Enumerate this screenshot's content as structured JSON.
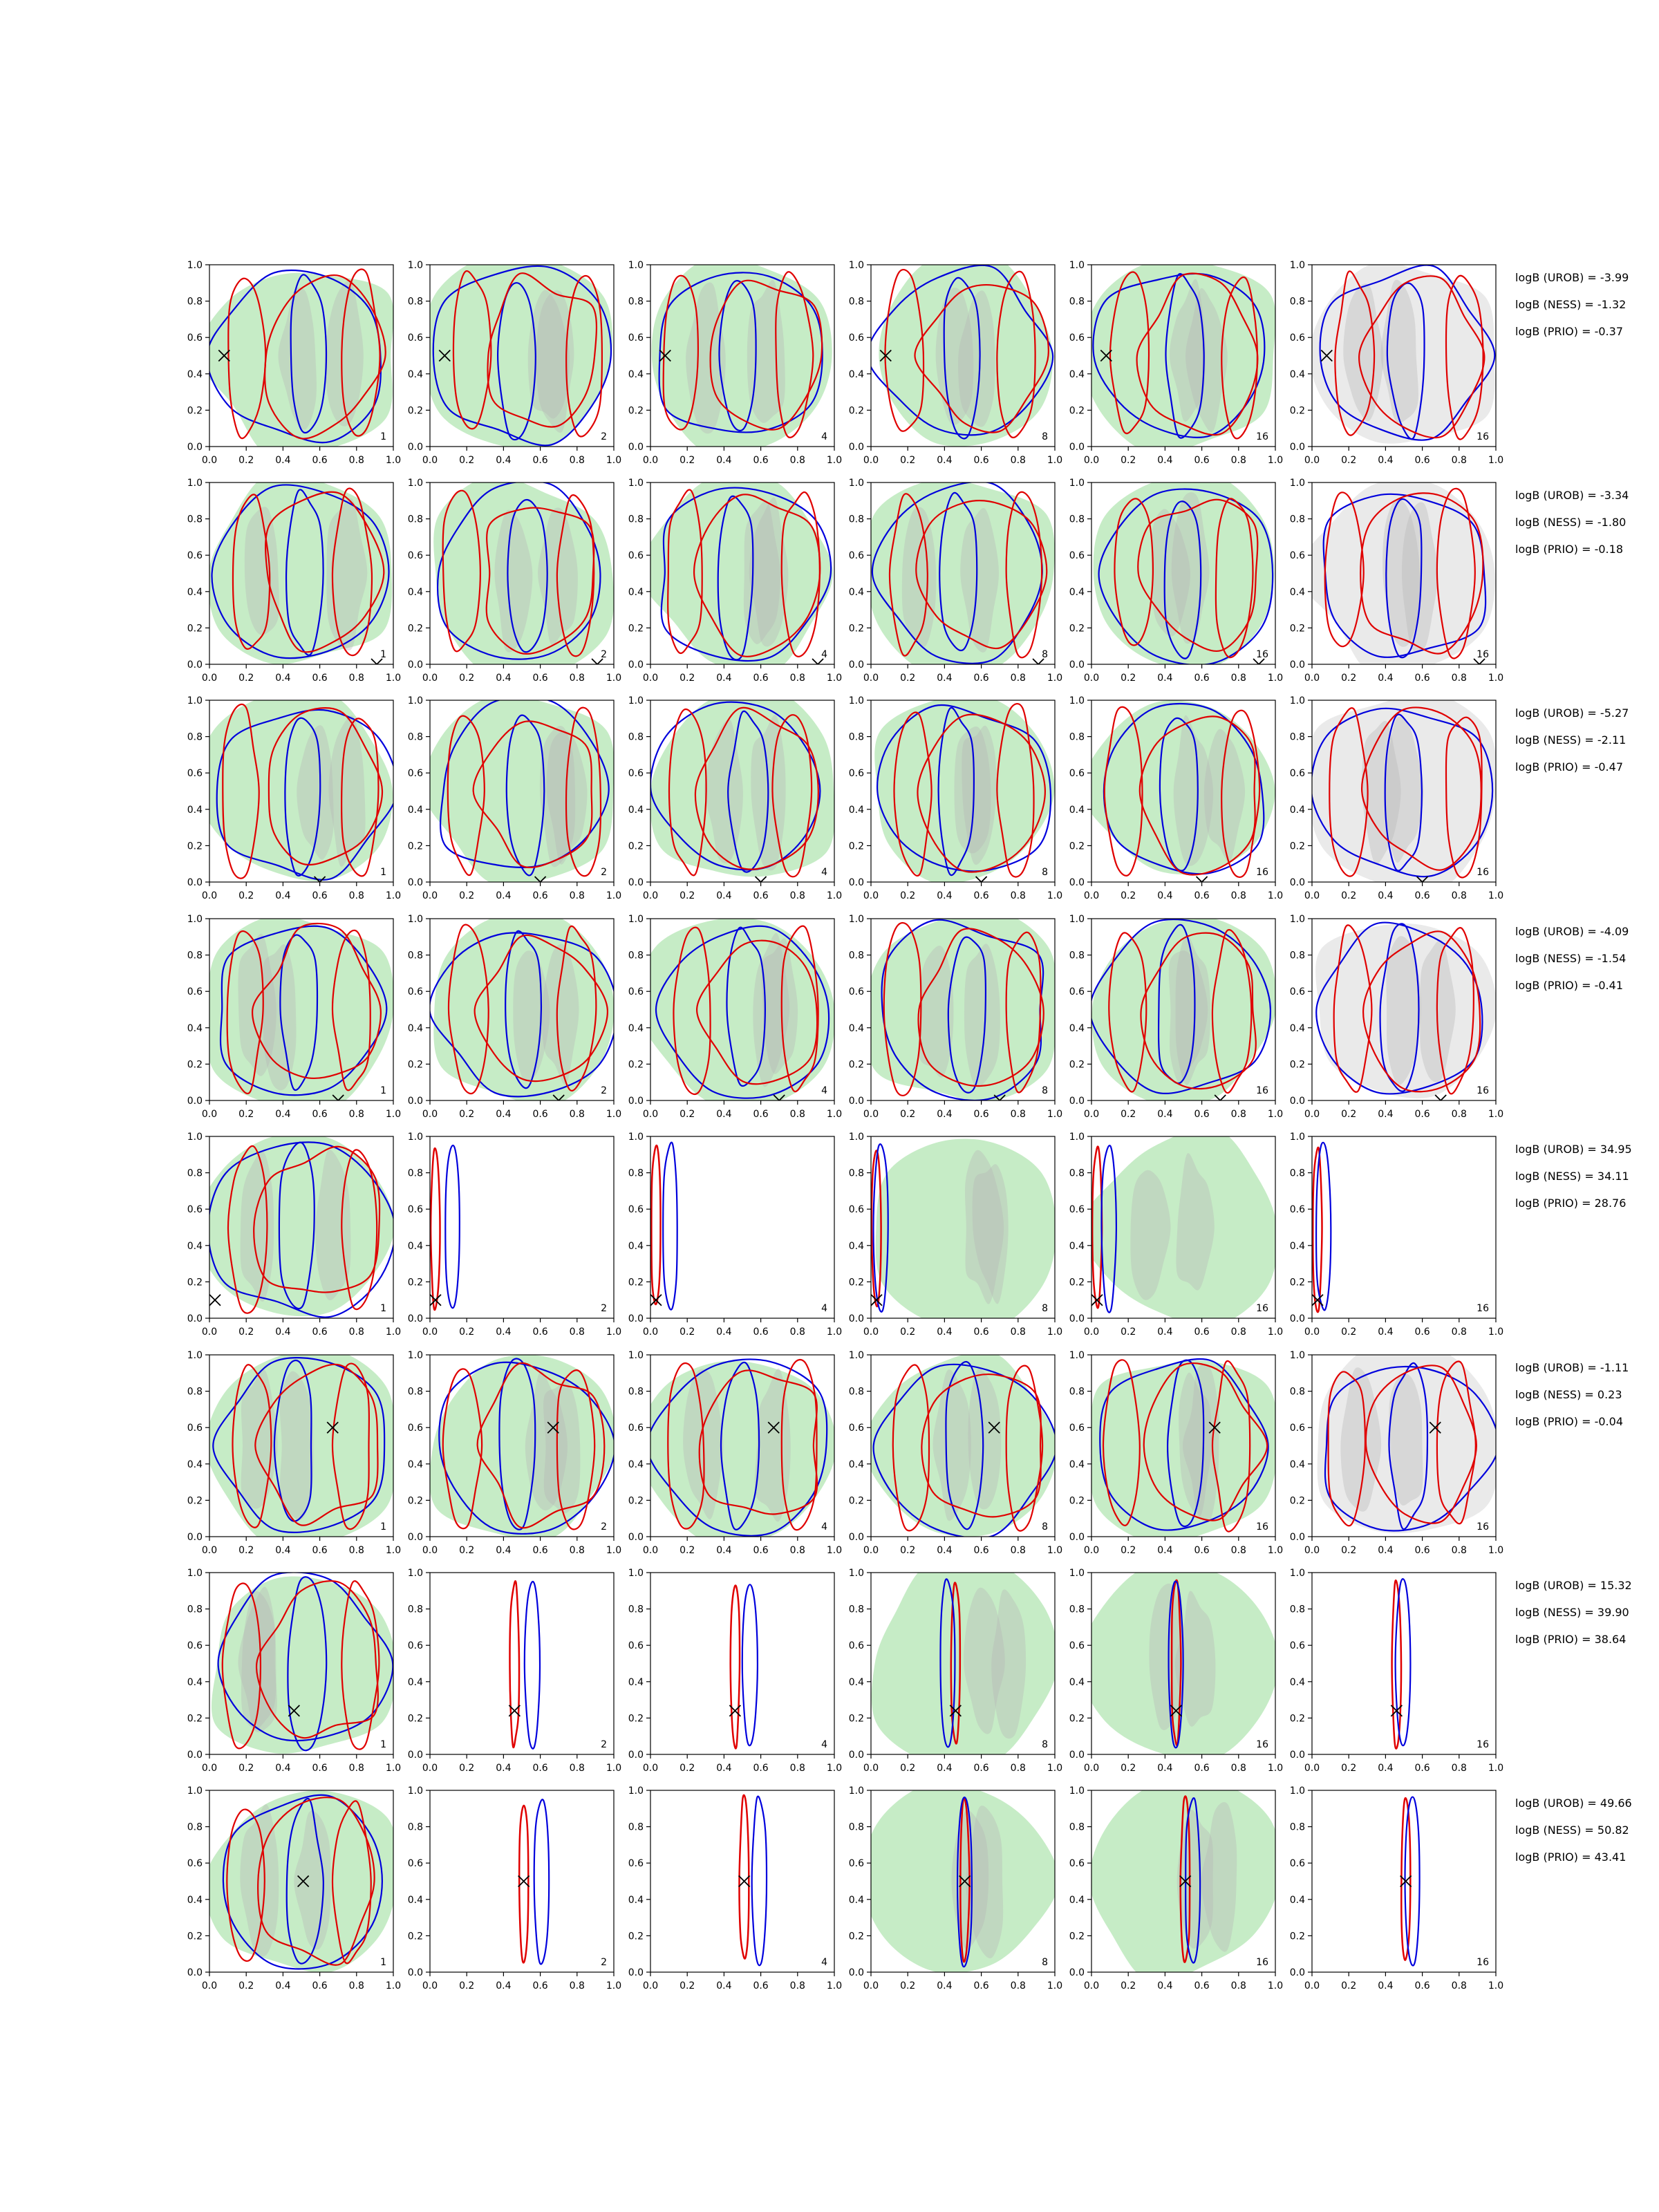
{
  "chart_data": {
    "type": "contour",
    "grid": {
      "rows": 8,
      "cols": 6
    },
    "col_labels": [
      "1",
      "2",
      "4",
      "8",
      "16",
      "16"
    ],
    "axes": {
      "xlim": [
        0.0,
        1.0
      ],
      "ylim": [
        0.0,
        1.0
      ],
      "xticks": [
        "0.0",
        "0.2",
        "0.4",
        "0.6",
        "0.8",
        "1.0"
      ],
      "yticks": [
        "0.0",
        "0.2",
        "0.4",
        "0.6",
        "0.8",
        "1.0"
      ]
    },
    "colors": {
      "region_fill": "#c6ecc6",
      "last_col_fill": "#eaeaea",
      "inner_fill": "#b5b5b5",
      "contour_red": "#e00000",
      "contour_blue": "#0000dd",
      "marker": "#000000"
    },
    "rows": [
      {
        "marker": [
          0.08,
          0.5
        ],
        "pattern": "wide",
        "bf": [
          "logB (UROB) = -3.99",
          "logB (NESS) = -1.32",
          "logB (PRIO) = -0.37"
        ]
      },
      {
        "marker": [
          0.91,
          0.0
        ],
        "pattern": "wide",
        "bf": [
          "logB (UROB) = -3.34",
          "logB (NESS) = -1.80",
          "logB (PRIO) = -0.18"
        ]
      },
      {
        "marker": [
          0.6,
          0.0
        ],
        "pattern": "wide",
        "bf": [
          "logB (UROB) = -5.27",
          "logB (NESS) = -2.11",
          "logB (PRIO) = -0.47"
        ]
      },
      {
        "marker": [
          0.7,
          0.0
        ],
        "pattern": "wide",
        "bf": [
          "logB (UROB) = -4.09",
          "logB (NESS) = -1.54",
          "logB (PRIO) = -0.41"
        ]
      },
      {
        "marker": [
          0.03,
          0.1
        ],
        "pattern": "narrow",
        "bf": [
          "logB (UROB) = 34.95",
          "logB (NESS) = 34.11",
          "logB (PRIO) = 28.76"
        ]
      },
      {
        "marker": [
          0.67,
          0.6
        ],
        "pattern": "wide",
        "bf": [
          "logB (UROB) = -1.11",
          "logB (NESS) = 0.23",
          "logB (PRIO) = -0.04"
        ]
      },
      {
        "marker": [
          0.46,
          0.24
        ],
        "pattern": "narrow",
        "bf": [
          "logB (UROB) = 15.32",
          "logB (NESS) = 39.90",
          "logB (PRIO) = 38.64"
        ]
      },
      {
        "marker": [
          0.51,
          0.5
        ],
        "pattern": "narrow",
        "bf": [
          "logB (UROB) = 49.66",
          "logB (NESS) = 50.82",
          "logB (PRIO) = 43.41"
        ]
      }
    ]
  }
}
